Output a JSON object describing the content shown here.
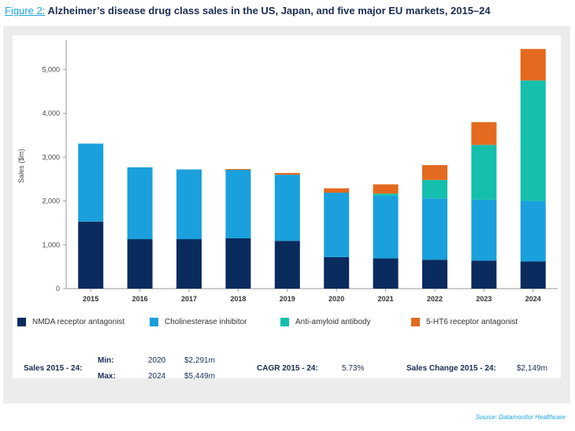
{
  "header": {
    "figure_label": "Figure 2:",
    "title": "Alzheimer’s disease drug class sales in the US, Japan, and five major EU markets, 2015–24"
  },
  "chart_data": {
    "type": "bar",
    "stacked": true,
    "categories": [
      "2015",
      "2016",
      "2017",
      "2018",
      "2019",
      "2020",
      "2021",
      "2022",
      "2023",
      "2024"
    ],
    "series": [
      {
        "name": "NMDA receptor antagonist",
        "color": "#0a2b5e",
        "values": [
          1530,
          1130,
          1130,
          1150,
          1090,
          720,
          690,
          660,
          640,
          620
        ]
      },
      {
        "name": "Cholinesterase inhibitor",
        "color": "#1aa0dc",
        "values": [
          1780,
          1640,
          1590,
          1560,
          1510,
          1470,
          1430,
          1400,
          1390,
          1380
        ]
      },
      {
        "name": "Anti-amyloid antibody",
        "color": "#14bfae",
        "values": [
          0,
          0,
          0,
          0,
          0,
          0,
          50,
          420,
          1250,
          2750
        ]
      },
      {
        "name": "5-HT6 receptor antagonist",
        "color": "#e36a1e",
        "values": [
          0,
          0,
          0,
          20,
          40,
          100,
          210,
          340,
          520,
          720
        ]
      }
    ],
    "ylabel": "Sales ($m)",
    "ylim": [
      0,
      5600
    ],
    "yticks": [
      "0",
      "1,000",
      "2,000",
      "3,000",
      "4,000",
      "5,000"
    ],
    "ytick_values": [
      0,
      1000,
      2000,
      3000,
      4000,
      5000
    ],
    "grid": false,
    "legend_position": "bottom"
  },
  "stats": {
    "sales_label": "Sales 2015 - 24:",
    "min_label": "Min:",
    "min_year": "2020",
    "min_value": "$2,291m",
    "max_label": "Max:",
    "max_year": "2024",
    "max_value": "$5,449m",
    "cagr_label": "CAGR 2015 - 24:",
    "cagr_value": "5.73%",
    "change_label": "Sales Change 2015 - 24:",
    "change_value": "$2,149m"
  },
  "source": "Source: Datamonitor Healthcare"
}
